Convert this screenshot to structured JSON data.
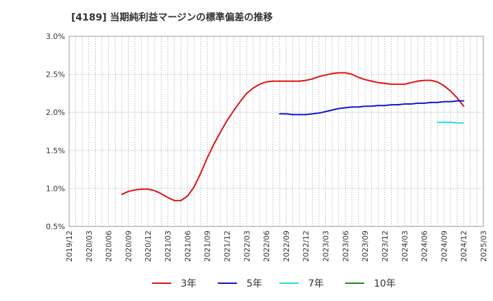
{
  "chart_data": {
    "type": "line",
    "title": "[4189]  当期純利益マージンの標準偏差の推移",
    "xlabel": "",
    "ylabel": "",
    "ylim": [
      0.5,
      3.0
    ],
    "yticks": [
      0.5,
      1.0,
      1.5,
      2.0,
      2.5,
      3.0
    ],
    "ytick_labels": [
      "0.5%",
      "1.0%",
      "1.5%",
      "2.0%",
      "2.5%",
      "3.0%"
    ],
    "xticks": [
      "2019/12",
      "2020/03",
      "2020/06",
      "2020/09",
      "2020/12",
      "2021/03",
      "2021/06",
      "2021/09",
      "2021/12",
      "2022/03",
      "2022/06",
      "2022/09",
      "2022/12",
      "2023/03",
      "2023/06",
      "2023/09",
      "2023/12",
      "2024/03",
      "2024/06",
      "2024/09",
      "2024/12",
      "2025/03"
    ],
    "grid": true,
    "legend_position": "bottom",
    "series": [
      {
        "name": "3年",
        "color": "#dd1111",
        "points": [
          [
            "2020/08",
            0.92
          ],
          [
            "2020/09",
            0.96
          ],
          [
            "2020/10",
            0.98
          ],
          [
            "2020/11",
            0.99
          ],
          [
            "2020/12",
            0.99
          ],
          [
            "2021/01",
            0.97
          ],
          [
            "2021/02",
            0.93
          ],
          [
            "2021/03",
            0.88
          ],
          [
            "2021/04",
            0.84
          ],
          [
            "2021/05",
            0.84
          ],
          [
            "2021/06",
            0.9
          ],
          [
            "2021/07",
            1.02
          ],
          [
            "2021/08",
            1.2
          ],
          [
            "2021/09",
            1.4
          ],
          [
            "2021/10",
            1.58
          ],
          [
            "2021/11",
            1.74
          ],
          [
            "2021/12",
            1.89
          ],
          [
            "2022/01",
            2.02
          ],
          [
            "2022/02",
            2.14
          ],
          [
            "2022/03",
            2.25
          ],
          [
            "2022/04",
            2.32
          ],
          [
            "2022/05",
            2.37
          ],
          [
            "2022/06",
            2.4
          ],
          [
            "2022/07",
            2.41
          ],
          [
            "2022/08",
            2.41
          ],
          [
            "2022/09",
            2.41
          ],
          [
            "2022/10",
            2.41
          ],
          [
            "2022/11",
            2.41
          ],
          [
            "2022/12",
            2.42
          ],
          [
            "2023/01",
            2.44
          ],
          [
            "2023/02",
            2.47
          ],
          [
            "2023/03",
            2.49
          ],
          [
            "2023/04",
            2.51
          ],
          [
            "2023/05",
            2.52
          ],
          [
            "2023/06",
            2.52
          ],
          [
            "2023/07",
            2.5
          ],
          [
            "2023/08",
            2.46
          ],
          [
            "2023/09",
            2.43
          ],
          [
            "2023/10",
            2.41
          ],
          [
            "2023/11",
            2.39
          ],
          [
            "2023/12",
            2.38
          ],
          [
            "2024/01",
            2.37
          ],
          [
            "2024/02",
            2.37
          ],
          [
            "2024/03",
            2.37
          ],
          [
            "2024/04",
            2.39
          ],
          [
            "2024/05",
            2.41
          ],
          [
            "2024/06",
            2.42
          ],
          [
            "2024/07",
            2.42
          ],
          [
            "2024/08",
            2.4
          ],
          [
            "2024/09",
            2.35
          ],
          [
            "2024/10",
            2.28
          ],
          [
            "2024/11",
            2.19
          ],
          [
            "2024/12",
            2.08
          ]
        ]
      },
      {
        "name": "5年",
        "color": "#1111cc",
        "points": [
          [
            "2022/08",
            1.98
          ],
          [
            "2022/09",
            1.98
          ],
          [
            "2022/10",
            1.97
          ],
          [
            "2022/11",
            1.97
          ],
          [
            "2022/12",
            1.97
          ],
          [
            "2023/01",
            1.98
          ],
          [
            "2023/02",
            1.99
          ],
          [
            "2023/03",
            2.01
          ],
          [
            "2023/04",
            2.03
          ],
          [
            "2023/05",
            2.05
          ],
          [
            "2023/06",
            2.06
          ],
          [
            "2023/07",
            2.07
          ],
          [
            "2023/08",
            2.07
          ],
          [
            "2023/09",
            2.08
          ],
          [
            "2023/10",
            2.08
          ],
          [
            "2023/11",
            2.09
          ],
          [
            "2023/12",
            2.09
          ],
          [
            "2024/01",
            2.1
          ],
          [
            "2024/02",
            2.1
          ],
          [
            "2024/03",
            2.11
          ],
          [
            "2024/04",
            2.11
          ],
          [
            "2024/05",
            2.12
          ],
          [
            "2024/06",
            2.12
          ],
          [
            "2024/07",
            2.13
          ],
          [
            "2024/08",
            2.13
          ],
          [
            "2024/09",
            2.14
          ],
          [
            "2024/10",
            2.14
          ],
          [
            "2024/11",
            2.15
          ],
          [
            "2024/12",
            2.15
          ]
        ]
      },
      {
        "name": "7年",
        "color": "#22dddd",
        "points": [
          [
            "2024/08",
            1.87
          ],
          [
            "2024/09",
            1.87
          ],
          [
            "2024/10",
            1.87
          ],
          [
            "2024/11",
            1.86
          ],
          [
            "2024/12",
            1.86
          ]
        ]
      },
      {
        "name": "10年",
        "color": "#228822",
        "points": []
      }
    ]
  }
}
